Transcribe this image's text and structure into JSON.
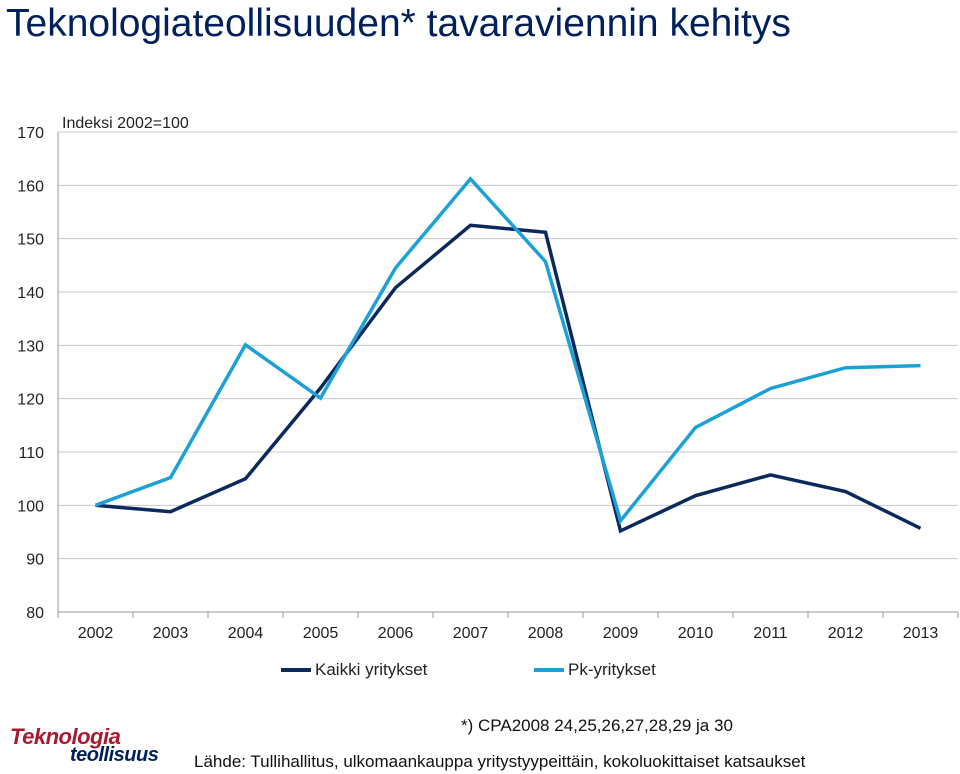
{
  "title": "Teknologiateollisuuden* tavaraviennin kehitys",
  "chart_data": {
    "type": "line",
    "title": "Teknologiateollisuuden* tavaraviennin kehitys",
    "unit_label": "Indeksi 2002=100",
    "categories": [
      "2002",
      "2003",
      "2004",
      "2005",
      "2006",
      "2007",
      "2008",
      "2009",
      "2010",
      "2011",
      "2012",
      "2013"
    ],
    "ylim": [
      80,
      170
    ],
    "yticks": [
      80,
      90,
      100,
      110,
      120,
      130,
      140,
      150,
      160,
      170
    ],
    "grid": true,
    "legend_position": "bottom",
    "series": [
      {
        "name": "Kaikki yritykset",
        "color": "#0b2a5b",
        "values": [
          100,
          98.8,
          105,
          122,
          140.8,
          152.5,
          151.2,
          95.2,
          101.8,
          105.7,
          102.6,
          95.7
        ]
      },
      {
        "name": "Pk-yritykset",
        "color": "#1ba0d7",
        "values": [
          100,
          105.2,
          130.1,
          120.1,
          144.5,
          161.2,
          145.7,
          97.1,
          114.6,
          121.9,
          125.8,
          126.2
        ]
      }
    ]
  },
  "footnote": "*) CPA2008 24,25,26,27,28,29 ja 30",
  "source": "Lähde: Tullihallitus, ulkomaankauppa yritystyypeittäin, kokoluokittaiset katsaukset",
  "logo": {
    "line1": "Teknologia",
    "line2": "teollisuus"
  }
}
